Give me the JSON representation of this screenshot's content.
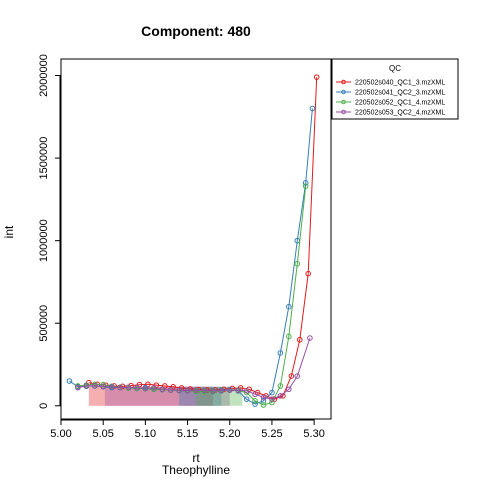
{
  "chart_data": {
    "type": "line",
    "title": "Component: 480",
    "xlabel": "rt",
    "xlabel2": "Theophylline",
    "ylabel": "int",
    "xlim": [
      5.0,
      5.32
    ],
    "ylim": [
      -80000,
      2100000
    ],
    "x_ticks": [
      "5.00",
      "5.05",
      "5.10",
      "5.15",
      "5.20",
      "5.25",
      "5.30"
    ],
    "x_tick_values": [
      5.0,
      5.05,
      5.1,
      5.15,
      5.2,
      5.25,
      5.3
    ],
    "y_ticks": [
      "0",
      "500000",
      "1000000",
      "1500000",
      "2000000"
    ],
    "y_tick_values": [
      0,
      500000,
      1000000,
      1500000,
      2000000
    ],
    "grid": false,
    "legend": {
      "title": "QC",
      "position": "top-right-outside"
    },
    "series": [
      {
        "name": "220502s040_QC1_3.mzXML",
        "color": "#E41A1C",
        "x": [
          5.033,
          5.043,
          5.053,
          5.063,
          5.073,
          5.083,
          5.093,
          5.103,
          5.113,
          5.123,
          5.133,
          5.143,
          5.153,
          5.163,
          5.173,
          5.183,
          5.193,
          5.203,
          5.213,
          5.223,
          5.233,
          5.243,
          5.253,
          5.263,
          5.273,
          5.283,
          5.293,
          5.303
        ],
        "y": [
          140000,
          130000,
          125000,
          120000,
          118000,
          122000,
          128000,
          130000,
          125000,
          120000,
          115000,
          108000,
          102000,
          98000,
          95000,
          96000,
          100000,
          105000,
          108000,
          100000,
          80000,
          60000,
          40000,
          60000,
          180000,
          400000,
          800000,
          1990000
        ]
      },
      {
        "name": "220502s041_QC2_3.mzXML",
        "color": "#377EB8",
        "x": [
          5.01,
          5.02,
          5.03,
          5.04,
          5.05,
          5.06,
          5.07,
          5.08,
          5.09,
          5.1,
          5.11,
          5.12,
          5.13,
          5.14,
          5.15,
          5.16,
          5.17,
          5.18,
          5.19,
          5.2,
          5.21,
          5.22,
          5.23,
          5.24,
          5.25,
          5.26,
          5.27,
          5.28,
          5.29,
          5.298
        ],
        "y": [
          150000,
          115000,
          118000,
          120000,
          115000,
          110000,
          112000,
          108000,
          105000,
          110000,
          100000,
          98000,
          95000,
          92000,
          90000,
          88000,
          90000,
          92000,
          95000,
          98000,
          90000,
          40000,
          10000,
          30000,
          80000,
          320000,
          600000,
          1000000,
          1350000,
          1800000
        ]
      },
      {
        "name": "220502s052_QC1_4.mzXML",
        "color": "#4DAF4A",
        "x": [
          5.02,
          5.03,
          5.04,
          5.05,
          5.06,
          5.07,
          5.08,
          5.09,
          5.1,
          5.11,
          5.12,
          5.13,
          5.14,
          5.15,
          5.16,
          5.17,
          5.18,
          5.19,
          5.2,
          5.21,
          5.22,
          5.23,
          5.24,
          5.25,
          5.26,
          5.27,
          5.28,
          5.29
        ],
        "y": [
          120000,
          125000,
          130000,
          128000,
          118000,
          112000,
          108000,
          105000,
          103000,
          100000,
          98000,
          95000,
          92000,
          90000,
          88000,
          86000,
          85000,
          90000,
          95000,
          92000,
          80000,
          30000,
          5000,
          20000,
          120000,
          420000,
          860000,
          1330000
        ]
      },
      {
        "name": "220502s053_QC2_4.mzXML",
        "color": "#984EA3",
        "x": [
          5.02,
          5.03,
          5.04,
          5.05,
          5.06,
          5.07,
          5.08,
          5.09,
          5.1,
          5.11,
          5.12,
          5.13,
          5.14,
          5.15,
          5.16,
          5.17,
          5.18,
          5.19,
          5.2,
          5.21,
          5.22,
          5.23,
          5.24,
          5.25,
          5.26,
          5.27,
          5.28,
          5.295
        ],
        "y": [
          110000,
          120000,
          122000,
          118000,
          115000,
          110000,
          112000,
          110000,
          105000,
          108000,
          100000,
          96000,
          94000,
          92000,
          95000,
          93000,
          90000,
          92000,
          95000,
          94000,
          90000,
          70000,
          50000,
          40000,
          60000,
          100000,
          180000,
          410000
        ]
      }
    ],
    "areas": [
      {
        "x0": 5.033,
        "x1": 5.18,
        "color": "#E41A1C"
      },
      {
        "x0": 5.052,
        "x1": 5.2,
        "color": "#984EA3"
      },
      {
        "x0": 5.14,
        "x1": 5.19,
        "color": "#377EB8"
      },
      {
        "x0": 5.16,
        "x1": 5.215,
        "color": "#4DAF4A"
      }
    ]
  }
}
